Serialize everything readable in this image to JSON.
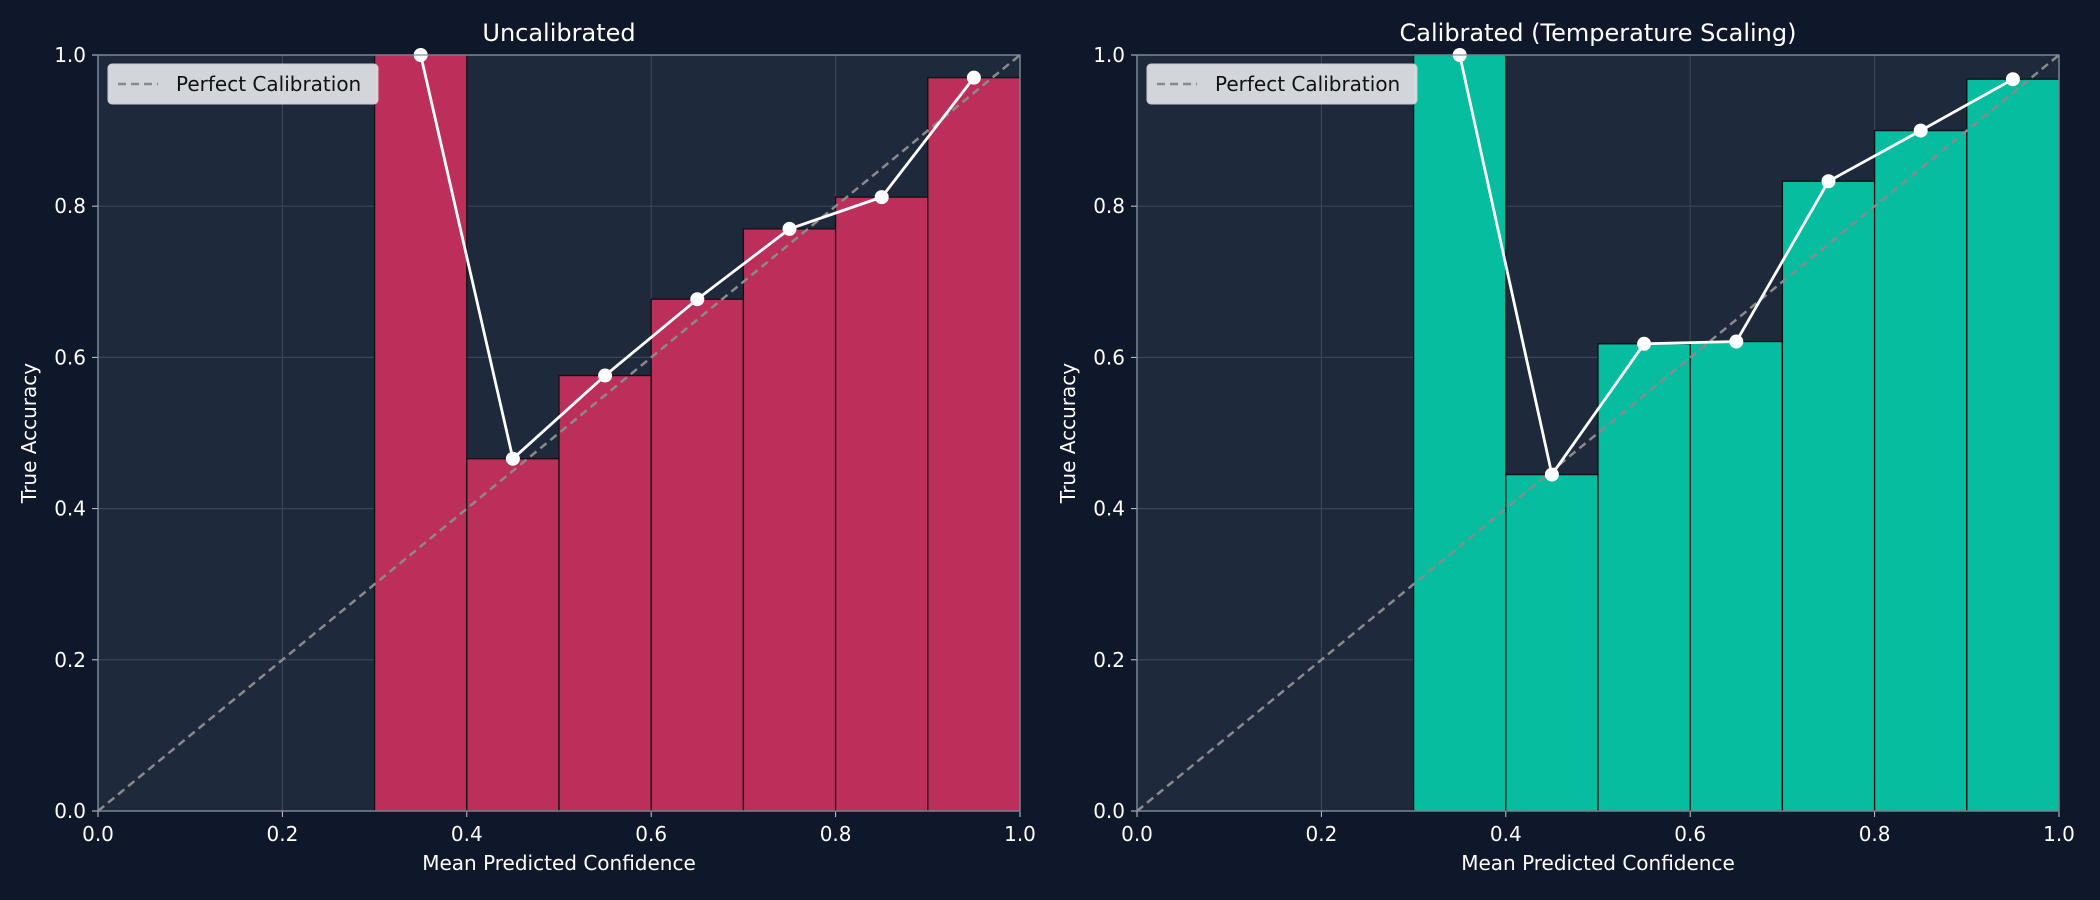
{
  "chart_data": [
    {
      "type": "bar",
      "title": "Uncalibrated",
      "xlabel": "Mean Predicted Confidence",
      "ylabel": "True Accuracy",
      "bins": [
        0.3,
        0.4,
        0.5,
        0.6,
        0.7,
        0.8,
        0.9,
        1.0
      ],
      "x": [
        0.35,
        0.45,
        0.55,
        0.65,
        0.75,
        0.85,
        0.95
      ],
      "values": [
        1.0,
        0.466,
        0.576,
        0.677,
        0.77,
        0.812,
        0.97
      ],
      "color": "#bb2f5a",
      "line_color": "#ffffff",
      "reference": {
        "name": "Perfect Calibration",
        "color": "#8a8a8a"
      },
      "xlim": [
        0,
        1
      ],
      "ylim": [
        0,
        1
      ],
      "xticks": [
        {
          "value": 0,
          "label": "0.0"
        },
        0.2,
        0.4,
        0.6,
        0.8,
        {
          "value": 1,
          "label": "1.0"
        }
      ],
      "yticks": [
        {
          "value": 0,
          "label": "0.0"
        },
        0.2,
        0.4,
        0.6,
        0.8,
        {
          "value": 1,
          "label": "1.0"
        }
      ],
      "grid": true,
      "legend": "upper-left"
    },
    {
      "type": "bar",
      "title": "Calibrated (Temperature Scaling)",
      "xlabel": "Mean Predicted Confidence",
      "ylabel": "True Accuracy",
      "bins": [
        0.3,
        0.4,
        0.5,
        0.6,
        0.7,
        0.8,
        0.9,
        1.0
      ],
      "x": [
        0.35,
        0.45,
        0.55,
        0.65,
        0.75,
        0.85,
        0.95
      ],
      "values": [
        1.0,
        0.445,
        0.618,
        0.621,
        0.833,
        0.9,
        0.968
      ],
      "color": "#06bd9f",
      "line_color": "#ffffff",
      "reference": {
        "name": "Perfect Calibration",
        "color": "#8a8a8a"
      },
      "xlim": [
        0,
        1
      ],
      "ylim": [
        0,
        1
      ],
      "xticks": [
        {
          "value": 0,
          "label": "0.0"
        },
        0.2,
        0.4,
        0.6,
        0.8,
        {
          "value": 1,
          "label": "1.0"
        }
      ],
      "yticks": [
        {
          "value": 0,
          "label": "0.0"
        },
        0.2,
        0.4,
        0.6,
        0.8,
        {
          "value": 1,
          "label": "1.0"
        }
      ],
      "grid": true,
      "legend": "upper-left"
    }
  ]
}
